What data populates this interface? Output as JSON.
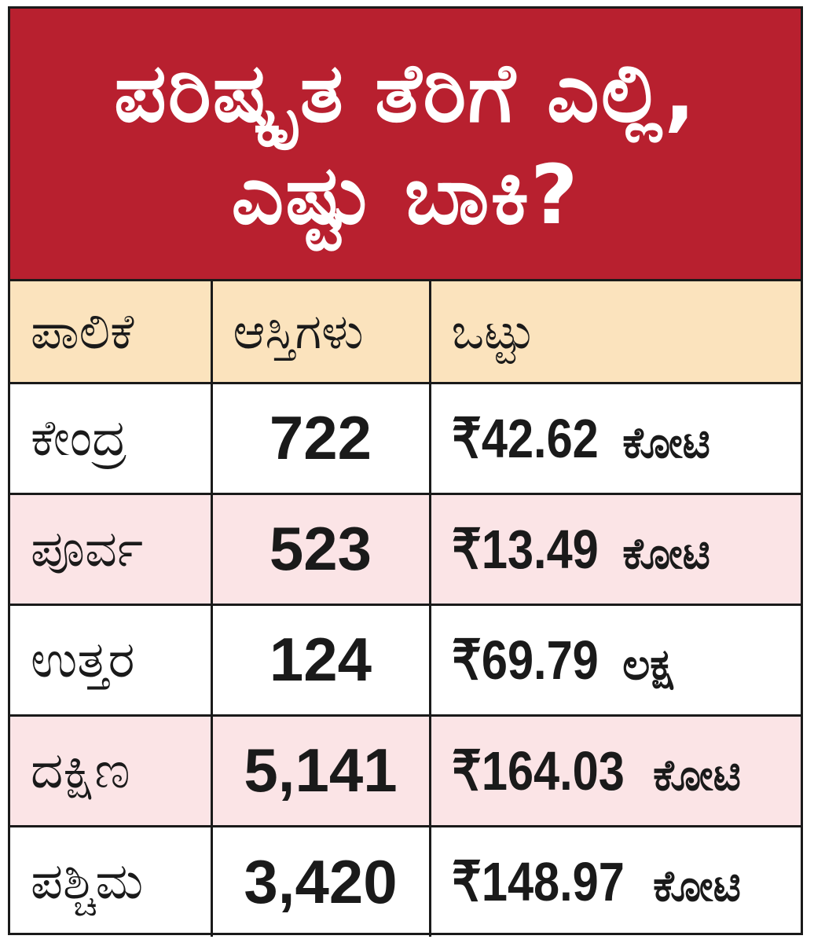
{
  "title": {
    "line1": "ಪರಿಷ್ಕೃತ ತೆರಿಗೆ ಎಲ್ಲಿ,",
    "line2": "ಎಷ್ಟು ಬಾಕಿ?"
  },
  "table": {
    "headers": [
      "ಪಾಲಿಕೆ",
      "ಆಸ್ತಿಗಳು",
      "ಒಟ್ಟು"
    ],
    "rows": [
      {
        "zone": "ಕೇಂದ್ರ",
        "properties": "722",
        "amount": "₹42.62",
        "unit": "ಕೋಟಿ"
      },
      {
        "zone": "ಪೂರ್ವ",
        "properties": "523",
        "amount": "₹13.49",
        "unit": "ಕೋಟಿ"
      },
      {
        "zone": "ಉತ್ತರ",
        "properties": "124",
        "amount": "₹69.79",
        "unit": "ಲಕ್ಷ"
      },
      {
        "zone": "ದಕ್ಷಿಣ",
        "properties": "5,141",
        "amount": "₹164.03",
        "unit": "ಕೋಟಿ"
      },
      {
        "zone": "ಪಶ್ಚಿಮ",
        "properties": "3,420",
        "amount": "₹148.97",
        "unit": "ಕೋಟಿ"
      }
    ]
  },
  "colors": {
    "title_bg": "#b8202f",
    "header_bg": "#fbe3bd",
    "alt_row_bg": "#fbe4e6",
    "border": "#1a1a1a"
  }
}
